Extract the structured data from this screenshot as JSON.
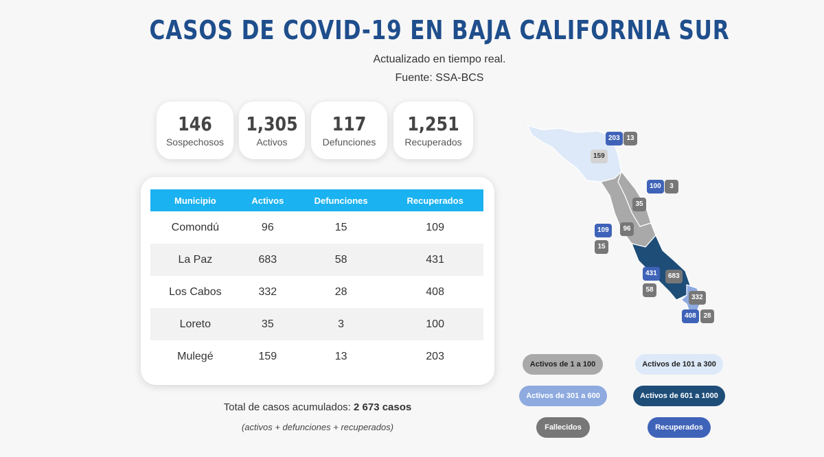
{
  "header": {
    "title": "CASOS DE COVID-19 EN BAJA CALIFORNIA SUR",
    "subtitle": "Actualizado en tiempo real.",
    "source": "Fuente: SSA-BCS"
  },
  "stats": [
    {
      "value": "146",
      "label": "Sospechosos"
    },
    {
      "value": "1,305",
      "label": "Activos"
    },
    {
      "value": "117",
      "label": "Defunciones"
    },
    {
      "value": "1,251",
      "label": "Recuperados"
    }
  ],
  "table": {
    "headers": [
      "Municipio",
      "Activos",
      "Defunciones",
      "Recuperados"
    ],
    "rows": [
      [
        "Comondú",
        "96",
        "15",
        "109"
      ],
      [
        "La Paz",
        "683",
        "58",
        "431"
      ],
      [
        "Los Cabos",
        "332",
        "28",
        "408"
      ],
      [
        "Loreto",
        "35",
        "3",
        "100"
      ],
      [
        "Mulegé",
        "159",
        "13",
        "203"
      ]
    ]
  },
  "total": {
    "label": "Total de casos acumulados:",
    "value": "2 673 casos",
    "note": "(activos + defunciones + recuperados)"
  },
  "map": {
    "badges": {
      "mulege_rec": "203",
      "mulege_def": "13",
      "mulege_act": "159",
      "loreto_rec": "100",
      "loreto_def": "3",
      "loreto_act": "35",
      "comondu_rec": "109",
      "comondu_def": "15",
      "comondu_act": "96",
      "lapaz_rec": "431",
      "lapaz_def": "58",
      "lapaz_act": "683",
      "loscabos_rec": "408",
      "loscabos_def": "28",
      "loscabos_act": "332"
    }
  },
  "legend": [
    {
      "label": "Activos de 1 a 100",
      "color": "#a9a9a9",
      "text_color": "#222"
    },
    {
      "label": "Activos de 101 a 300",
      "color": "#dde9f8",
      "text_color": "#222"
    },
    {
      "label": "Activos de 301 a 600",
      "color": "#8eaadf",
      "text_color": "#fff"
    },
    {
      "label": "Activos de 601 a 1000",
      "color": "#1e4d78",
      "text_color": "#fff"
    },
    {
      "label": "Fallecidos",
      "color": "#777777",
      "text_color": "#fff"
    },
    {
      "label": "Recuperados",
      "color": "#3f63b8",
      "text_color": "#fff"
    }
  ]
}
